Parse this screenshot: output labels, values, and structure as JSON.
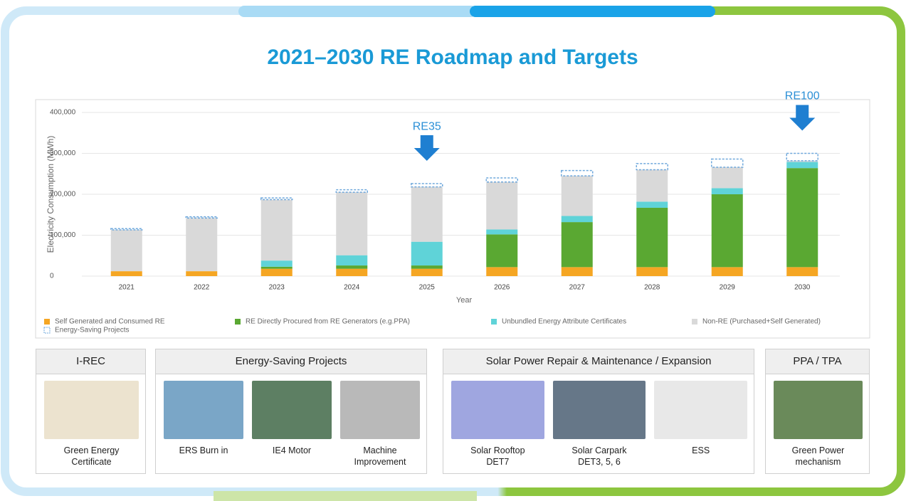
{
  "title": "2021–2030 RE Roadmap and Targets",
  "chart_data": {
    "type": "stacked-bar",
    "x_label": "Year",
    "y_label": "Electricity Consumption (MWh)",
    "categories": [
      "2021",
      "2022",
      "2023",
      "2024",
      "2025",
      "2026",
      "2027",
      "2028",
      "2029",
      "2030"
    ],
    "series": [
      {
        "name": "Self Generated and Consumed RE",
        "color": "#f5a623",
        "values": [
          12000,
          12000,
          18000,
          18000,
          18000,
          22000,
          22000,
          22000,
          22000,
          22000
        ]
      },
      {
        "name": "RE Directly Procured from RE Generators (e.g.PPA)",
        "color": "#5aa832",
        "values": [
          0,
          0,
          5000,
          8000,
          8000,
          80000,
          110000,
          145000,
          178000,
          242000
        ]
      },
      {
        "name": "Unbundled Energy Attribute Certificates",
        "color": "#5fd3d8",
        "values": [
          0,
          0,
          15000,
          25000,
          58000,
          12000,
          15000,
          15000,
          15000,
          15000
        ]
      },
      {
        "name": "Non-RE (Purchased+Self Generated)",
        "color": "#d9d9d9",
        "values": [
          101000,
          130000,
          149000,
          154000,
          134000,
          116000,
          98000,
          78000,
          51000,
          3000
        ]
      },
      {
        "name": "Energy-Saving Projects",
        "color": "#6fa8dc",
        "dashed": true,
        "values": [
          3000,
          3000,
          4000,
          6000,
          8000,
          10000,
          13000,
          15000,
          20000,
          18000
        ]
      }
    ],
    "ylim": [
      0,
      400000
    ],
    "yticks": [
      0,
      {
        "value": 100000,
        "label": "100,000"
      },
      {
        "value": 200000,
        "label": "200,000"
      },
      {
        "value": 300000,
        "label": "300,000"
      },
      {
        "value": 400000,
        "label": "400,000"
      }
    ],
    "grid": true,
    "annotations": [
      {
        "label": "RE35",
        "x": "2025"
      },
      {
        "label": "RE100",
        "x": "2030"
      }
    ]
  },
  "panels": [
    {
      "title": "I-REC",
      "items": [
        "Green Energy\nCertificate"
      ]
    },
    {
      "title": "Energy-Saving Projects",
      "items": [
        "ERS Burn in",
        "IE4 Motor",
        "Machine\nImprovement"
      ]
    },
    {
      "title": "Solar Power Repair & Maintenance / Expansion",
      "items": [
        "Solar Rooftop\nDET7",
        "Solar Carpark\nDET3, 5, 6",
        "ESS"
      ]
    },
    {
      "title": "PPA / TPA",
      "items": [
        "Green Power\nmechanism"
      ]
    }
  ]
}
